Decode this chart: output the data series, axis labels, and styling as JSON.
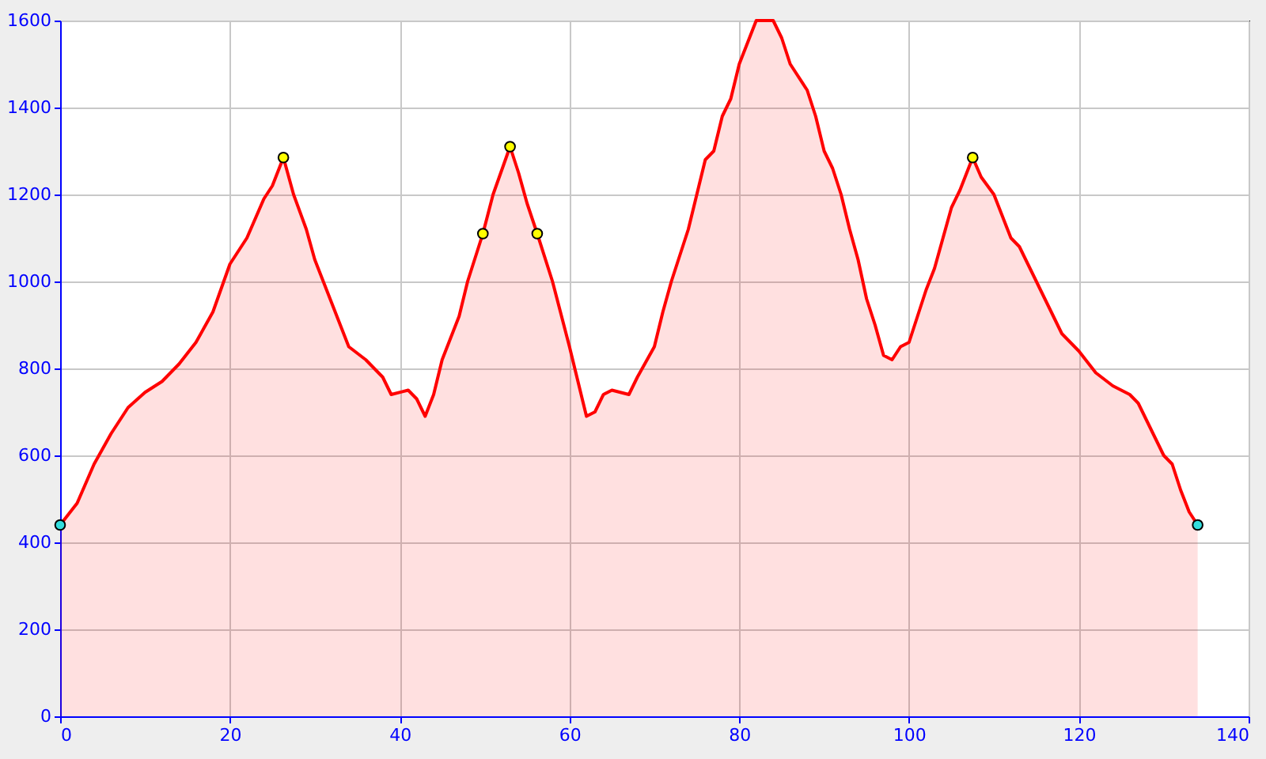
{
  "chart_data": {
    "type": "area",
    "xlim": [
      0,
      140
    ],
    "xticks": [
      0,
      20,
      40,
      60,
      80,
      100,
      120,
      140
    ],
    "ylim": [
      0,
      1600
    ],
    "yticks": [
      0,
      200,
      400,
      600,
      800,
      1000,
      1200,
      1400,
      1600
    ],
    "grid": true,
    "series": [
      {
        "color": "#ff0000",
        "x": [
          0,
          2,
          4,
          6,
          8,
          10,
          12,
          14,
          16,
          18,
          20,
          22,
          24,
          25,
          26.3,
          27.5,
          29,
          30,
          32,
          34,
          36,
          38,
          39,
          41,
          42,
          43,
          44,
          45,
          47,
          48,
          49.8,
          51,
          53,
          54,
          55,
          56.2,
          58,
          60,
          61,
          62,
          63,
          64,
          65,
          67,
          68,
          70,
          71,
          72,
          74,
          75,
          76,
          77,
          78,
          79,
          80,
          81,
          82,
          83,
          84,
          85,
          86,
          88,
          89,
          90,
          91,
          92,
          93,
          94,
          95,
          96,
          97,
          98,
          99,
          100,
          101,
          102,
          103,
          104,
          105,
          106,
          107.5,
          108.5,
          110,
          111,
          112,
          113,
          114,
          116,
          118,
          120,
          122,
          124,
          126,
          127,
          128,
          130,
          131,
          132,
          133,
          134
        ],
        "values": [
          440,
          490,
          580,
          650,
          710,
          745,
          770,
          810,
          860,
          930,
          1040,
          1100,
          1190,
          1220,
          1285,
          1200,
          1120,
          1050,
          950,
          850,
          820,
          780,
          740,
          750,
          730,
          690,
          740,
          820,
          920,
          1000,
          1110,
          1200,
          1310,
          1250,
          1180,
          1110,
          1000,
          850,
          770,
          690,
          700,
          740,
          750,
          740,
          780,
          850,
          930,
          1000,
          1120,
          1200,
          1280,
          1300,
          1380,
          1420,
          1500,
          1550,
          1600,
          1600,
          1600,
          1560,
          1500,
          1440,
          1380,
          1300,
          1260,
          1200,
          1120,
          1050,
          960,
          900,
          830,
          820,
          850,
          860,
          920,
          980,
          1030,
          1100,
          1170,
          1210,
          1285,
          1240,
          1200,
          1150,
          1100,
          1080,
          1040,
          960,
          880,
          840,
          790,
          760,
          740,
          720,
          680,
          600,
          580,
          520,
          470,
          440
        ]
      },
      {
        "type": "scatter",
        "marker": "circle",
        "x": [
          0,
          26.3,
          49.8,
          53,
          56.2,
          107.5,
          134
        ],
        "values": [
          440,
          1285,
          1110,
          1310,
          1110,
          1285,
          440
        ],
        "colors": [
          "#33dddd",
          "#ffff00",
          "#ffff00",
          "#ffff00",
          "#ffff00",
          "#ffff00",
          "#33dddd"
        ]
      }
    ]
  }
}
